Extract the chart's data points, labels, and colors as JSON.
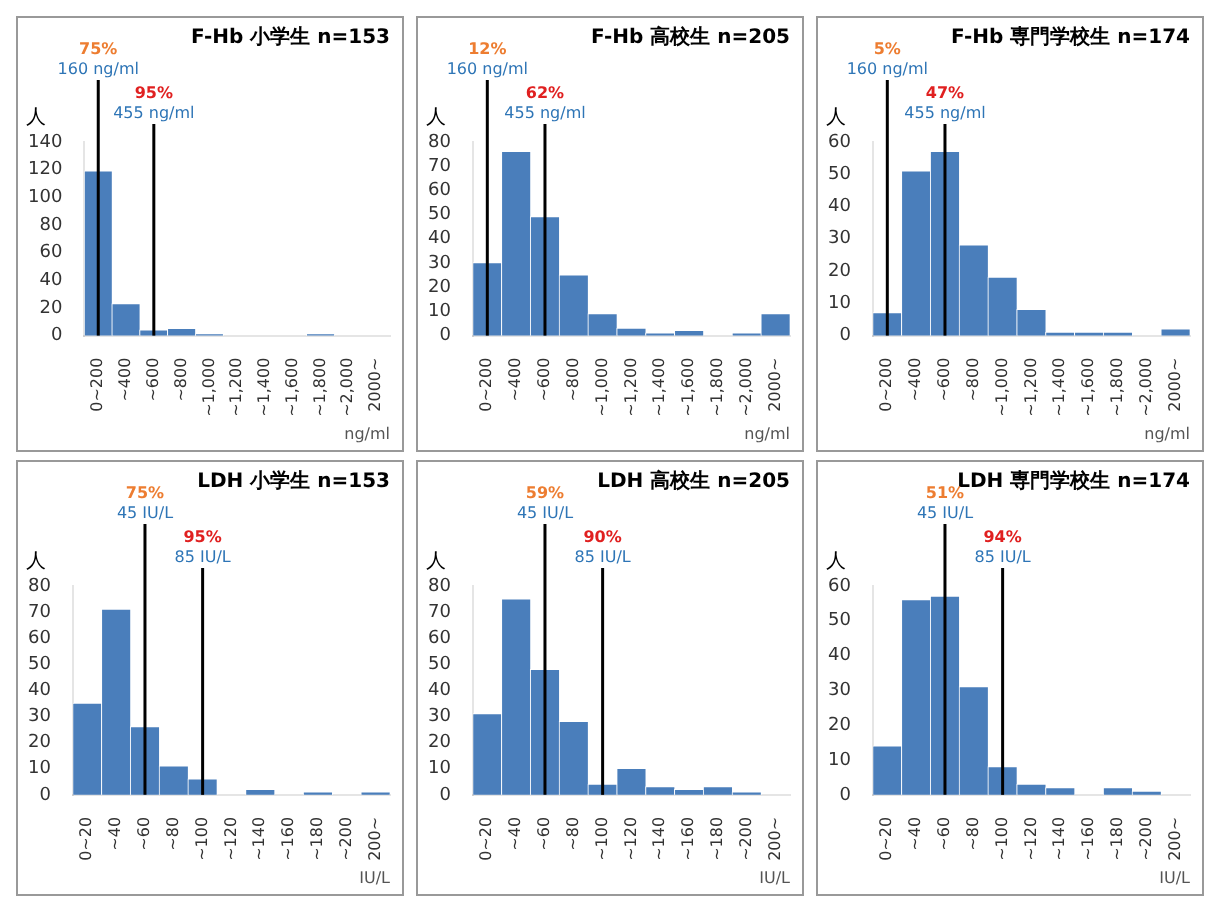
{
  "chart_data": [
    {
      "type": "bar",
      "title": "F-Hb 小学生 n=153",
      "xlabel": "ng/ml",
      "ylabel": "人",
      "categories": [
        "0~200",
        "~400",
        "~600",
        "~800",
        "~1,000",
        "~1,200",
        "~1,400",
        "~1,600",
        "~1,800",
        "~2,000",
        "2000~"
      ],
      "values": [
        119,
        23,
        4,
        5,
        1,
        0,
        0,
        0,
        1,
        0,
        0
      ],
      "color": "#4a7ebb",
      "ylim": [
        0,
        140
      ],
      "yticks": [
        0,
        20,
        40,
        60,
        80,
        100,
        120,
        140
      ],
      "ref_lines": [
        {
          "axis": "x",
          "value": "0~200",
          "label": "160 ng/ml",
          "color": "#000000"
        },
        {
          "axis": "x",
          "value": "~600",
          "label": "455 ng/ml",
          "color": "#000000"
        }
      ],
      "annotations": [
        "75%",
        "95%"
      ]
    },
    {
      "type": "bar",
      "title": "F-Hb 高校生 n=205",
      "xlabel": "ng/ml",
      "ylabel": "人",
      "categories": [
        "0~200",
        "~400",
        "~600",
        "~800",
        "~1,000",
        "~1,200",
        "~1,400",
        "~1,600",
        "~1,800",
        "~2,000",
        "2000~"
      ],
      "values": [
        30,
        76,
        49,
        25,
        9,
        3,
        1,
        2,
        0,
        1,
        9
      ],
      "color": "#4a7ebb",
      "ylim": [
        0,
        80
      ],
      "yticks": [
        0,
        10,
        20,
        30,
        40,
        50,
        60,
        70,
        80
      ],
      "ref_lines": [
        {
          "axis": "x",
          "value": "0~200",
          "label": "160 ng/ml",
          "color": "#000000"
        },
        {
          "axis": "x",
          "value": "~600",
          "label": "455 ng/ml",
          "color": "#000000"
        }
      ],
      "annotations": [
        "12%",
        "62%"
      ]
    },
    {
      "type": "bar",
      "title": "F-Hb 専門学校生 n=174",
      "xlabel": "ng/ml",
      "ylabel": "人",
      "categories": [
        "0~200",
        "~400",
        "~600",
        "~800",
        "~1,000",
        "~1,200",
        "~1,400",
        "~1,600",
        "~1,800",
        "~2,000",
        "2000~"
      ],
      "values": [
        7,
        51,
        57,
        28,
        18,
        8,
        1,
        1,
        1,
        0,
        2
      ],
      "color": "#4a7ebb",
      "ylim": [
        0,
        60
      ],
      "yticks": [
        0,
        10,
        20,
        30,
        40,
        50,
        60
      ],
      "ref_lines": [
        {
          "axis": "x",
          "value": "0~200",
          "label": "160 ng/ml",
          "color": "#000000"
        },
        {
          "axis": "x",
          "value": "~600",
          "label": "455 ng/ml",
          "color": "#000000"
        }
      ],
      "annotations": [
        "5%",
        "47%"
      ]
    },
    {
      "type": "bar",
      "title": "LDH 小学生 n=153",
      "xlabel": "IU/L",
      "ylabel": "人",
      "categories": [
        "0~20",
        "~40",
        "~60",
        "~80",
        "~100",
        "~120",
        "~140",
        "~160",
        "~180",
        "~200",
        "200~"
      ],
      "values": [
        35,
        71,
        26,
        11,
        6,
        0,
        2,
        0,
        1,
        0,
        1
      ],
      "color": "#4a7ebb",
      "ylim": [
        0,
        80
      ],
      "yticks": [
        0,
        10,
        20,
        30,
        40,
        50,
        60,
        70,
        80
      ],
      "ref_lines": [
        {
          "axis": "x",
          "value": "~60",
          "label": "45 IU/L",
          "color": "#000000"
        },
        {
          "axis": "x",
          "value": "~100",
          "label": "85 IU/L",
          "color": "#000000"
        }
      ],
      "annotations": [
        "75%",
        "95%"
      ]
    },
    {
      "type": "bar",
      "title": "LDH 高校生 n=205",
      "xlabel": "IU/L",
      "ylabel": "人",
      "categories": [
        "0~20",
        "~40",
        "~60",
        "~80",
        "~100",
        "~120",
        "~140",
        "~160",
        "~180",
        "~200",
        "200~"
      ],
      "values": [
        31,
        75,
        48,
        28,
        4,
        10,
        3,
        2,
        3,
        1,
        0
      ],
      "color": "#4a7ebb",
      "ylim": [
        0,
        80
      ],
      "yticks": [
        0,
        10,
        20,
        30,
        40,
        50,
        60,
        70,
        80
      ],
      "ref_lines": [
        {
          "axis": "x",
          "value": "~60",
          "label": "45 IU/L",
          "color": "#000000"
        },
        {
          "axis": "x",
          "value": "~100",
          "label": "85 IU/L",
          "color": "#000000"
        }
      ],
      "annotations": [
        "59%",
        "90%"
      ]
    },
    {
      "type": "bar",
      "title": "LDH 専門学校生 n=174",
      "xlabel": "IU/L",
      "ylabel": "人",
      "categories": [
        "0~20",
        "~40",
        "~60",
        "~80",
        "~100",
        "~120",
        "~140",
        "~160",
        "~180",
        "~200",
        "200~"
      ],
      "values": [
        14,
        56,
        57,
        31,
        8,
        3,
        2,
        0,
        2,
        1,
        0
      ],
      "color": "#4a7ebb",
      "ylim": [
        0,
        60
      ],
      "yticks": [
        0,
        10,
        20,
        30,
        40,
        50,
        60
      ],
      "ref_lines": [
        {
          "axis": "x",
          "value": "~60",
          "label": "45 IU/L",
          "color": "#000000"
        },
        {
          "axis": "x",
          "value": "~100",
          "label": "85 IU/L",
          "color": "#000000"
        }
      ],
      "annotations": [
        "51%",
        "94%"
      ]
    }
  ]
}
